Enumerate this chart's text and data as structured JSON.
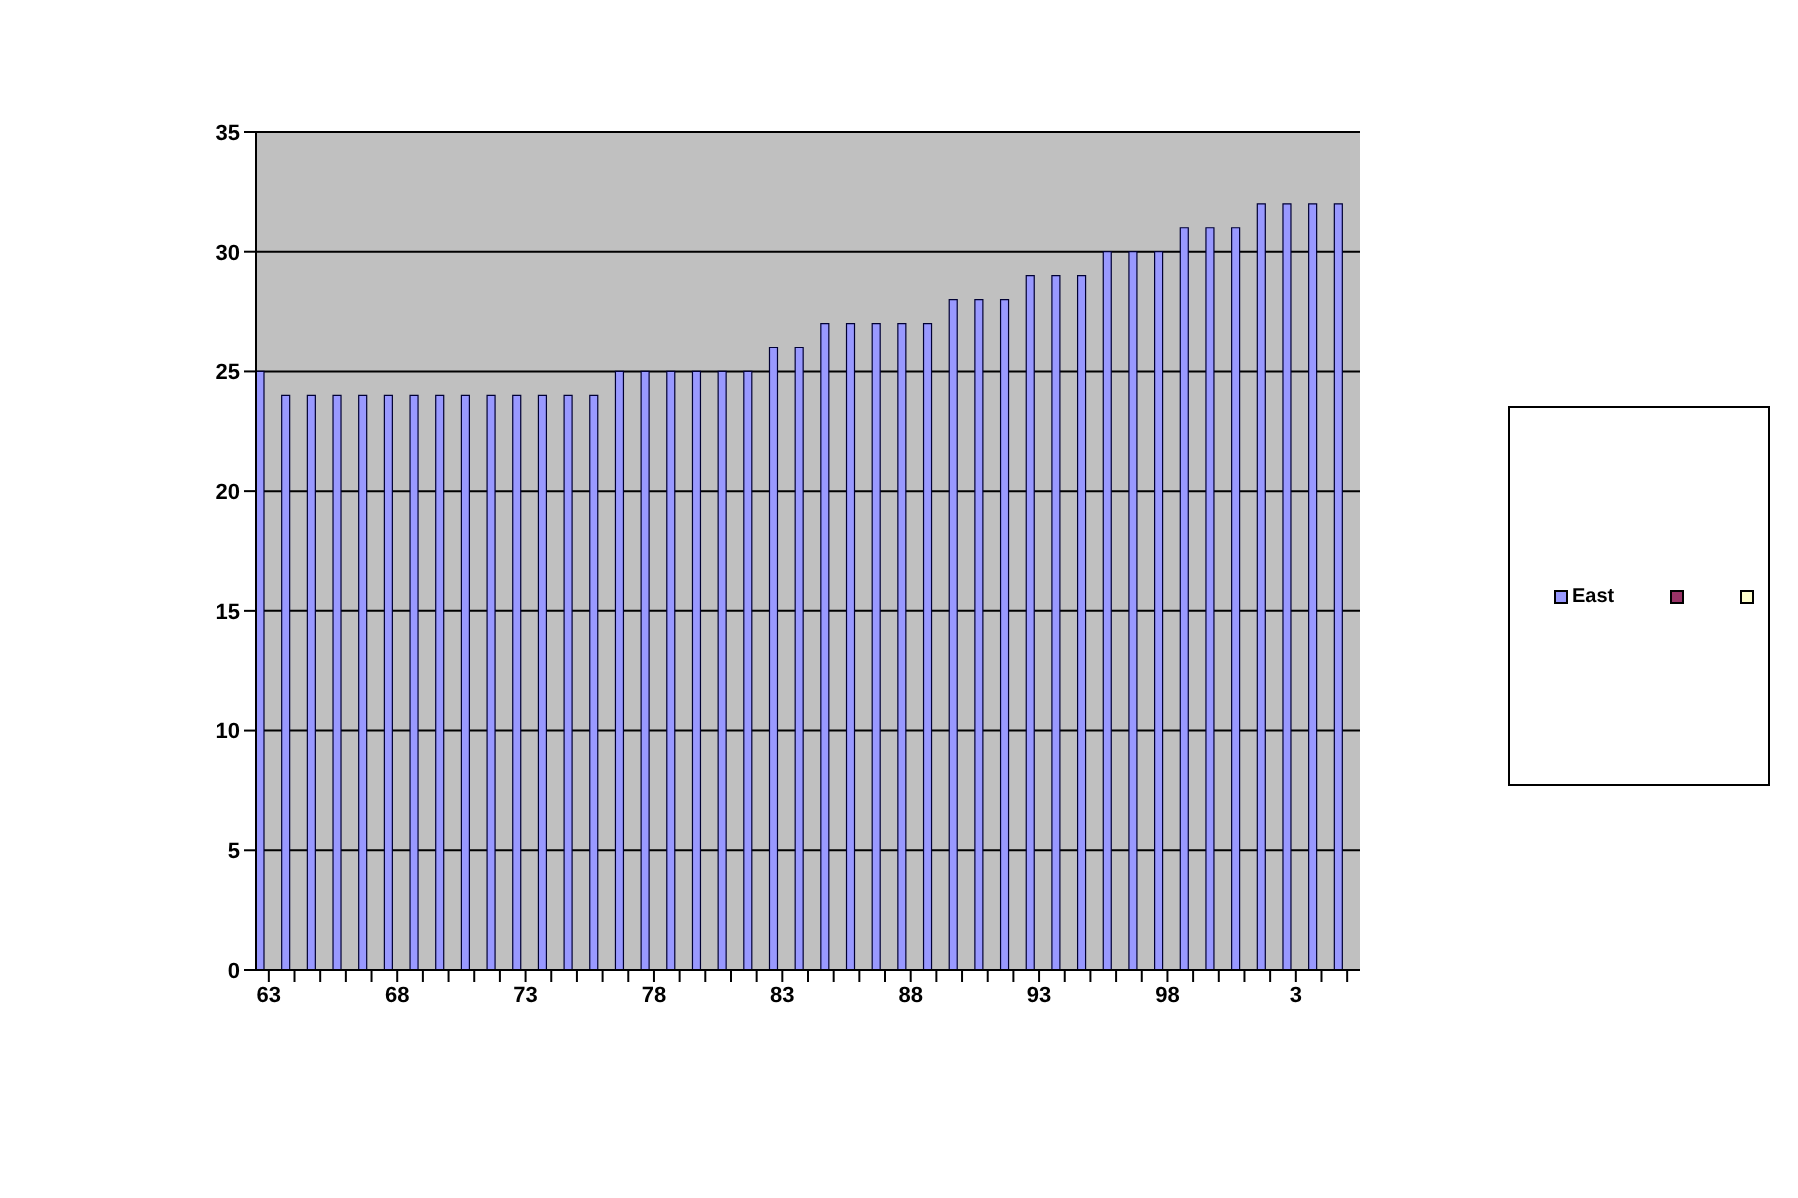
{
  "chart_data": {
    "type": "bar",
    "categories": [
      "63",
      null,
      null,
      null,
      null,
      "68",
      null,
      null,
      null,
      null,
      "73",
      null,
      null,
      null,
      null,
      "78",
      null,
      null,
      null,
      null,
      "83",
      null,
      null,
      null,
      null,
      "88",
      null,
      null,
      null,
      null,
      "93",
      null,
      null,
      null,
      null,
      "98",
      null,
      null,
      null,
      null,
      "3",
      null,
      null
    ],
    "series": [
      {
        "name": "East",
        "color": "#9999ff",
        "values": [
          25,
          24,
          24,
          24,
          24,
          24,
          24,
          24,
          24,
          24,
          24,
          24,
          24,
          24,
          25,
          25,
          25,
          25,
          25,
          25,
          26,
          26,
          27,
          27,
          27,
          27,
          27,
          28,
          28,
          28,
          29,
          29,
          29,
          30,
          30,
          30,
          31,
          31,
          31,
          32,
          32,
          32,
          32
        ]
      },
      {
        "color": "#993366",
        "values": [
          null,
          null,
          null,
          null,
          null,
          null,
          null,
          null,
          null,
          null,
          null,
          null,
          null,
          null,
          null,
          null,
          null,
          null,
          null,
          null,
          null,
          null,
          null,
          null,
          null,
          null,
          null,
          null,
          null,
          null,
          null,
          null,
          null,
          null,
          null,
          null,
          null,
          null,
          null,
          null,
          null,
          null,
          null
        ]
      },
      {
        "color": "#ffffcc",
        "values": [
          null,
          null,
          null,
          null,
          null,
          null,
          null,
          null,
          null,
          null,
          null,
          null,
          null,
          null,
          null,
          null,
          null,
          null,
          null,
          null,
          null,
          null,
          null,
          null,
          null,
          null,
          null,
          null,
          null,
          null,
          null,
          null,
          null,
          null,
          null,
          null,
          null,
          null,
          null,
          null,
          null,
          null,
          null
        ]
      }
    ],
    "ylim": [
      0,
      35
    ],
    "yticks": [
      0,
      5,
      10,
      15,
      20,
      25,
      30,
      35
    ],
    "grid": "y",
    "legend": "right"
  }
}
